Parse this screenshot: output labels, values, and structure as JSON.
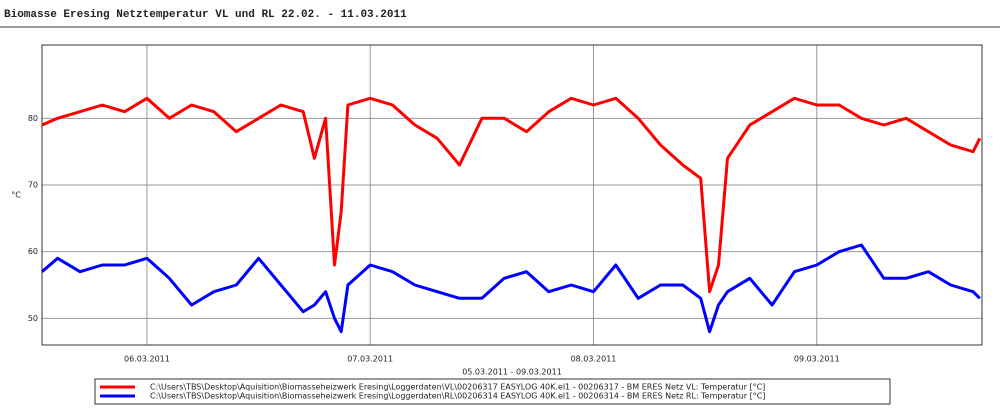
{
  "chart_data": {
    "type": "line",
    "title": "Biomasse Eresing Netztemperatur VL und RL 22.02. - 11.03.2011",
    "x_label": "05.03.2011 - 09.03.2011",
    "y_label": "°C",
    "x": [
      0.53,
      0.6,
      0.7,
      0.8,
      0.9,
      1.0,
      1.1,
      1.2,
      1.3,
      1.4,
      1.5,
      1.6,
      1.7,
      1.75,
      1.8,
      1.84,
      1.87,
      1.9,
      2.0,
      2.1,
      2.2,
      2.3,
      2.4,
      2.5,
      2.6,
      2.7,
      2.8,
      2.9,
      3.0,
      3.1,
      3.2,
      3.3,
      3.4,
      3.48,
      3.52,
      3.56,
      3.6,
      3.7,
      3.8,
      3.9,
      4.0,
      4.1,
      4.2,
      4.3,
      4.4,
      4.5,
      4.6,
      4.7,
      4.73
    ],
    "series": [
      {
        "name": "C:\\Users\\TBS\\Desktop\\Aquisition\\Biomasseheizwerk Eresing\\Loggerdaten\\VL\\00206317 EASYLOG 40K.el1 - 00206317 - BM ERES Netz VL: Temperatur [°C]",
        "color": "#ff0000",
        "values": [
          79,
          80,
          81,
          82,
          81,
          83,
          80,
          82,
          81,
          78,
          80,
          82,
          81,
          74,
          80,
          58,
          66,
          82,
          83,
          82,
          79,
          77,
          73,
          80,
          80,
          78,
          81,
          83,
          82,
          83,
          80,
          76,
          73,
          71,
          54,
          58,
          74,
          79,
          81,
          83,
          82,
          82,
          80,
          79,
          80,
          78,
          76,
          75,
          77
        ]
      },
      {
        "name": "C:\\Users\\TBS\\Desktop\\Aquisition\\Biomasseheizwerk Eresing\\Loggerdaten\\RL\\00206314 EASYLOG 40K.el1 - 00206314 - BM ERES Netz RL: Temperatur [°C]",
        "color": "#0000ff",
        "values": [
          57,
          59,
          57,
          58,
          58,
          59,
          56,
          52,
          54,
          55,
          59,
          55,
          51,
          52,
          54,
          50,
          48,
          55,
          58,
          57,
          55,
          54,
          53,
          53,
          56,
          57,
          54,
          55,
          54,
          58,
          53,
          55,
          55,
          53,
          48,
          52,
          54,
          56,
          52,
          57,
          58,
          60,
          61,
          56,
          56,
          57,
          55,
          54,
          53
        ]
      }
    ],
    "xlim": [
      0.53,
      4.74
    ],
    "xticks": [
      {
        "value": 1,
        "label": "06.03.2011"
      },
      {
        "value": 2,
        "label": "07.03.2011"
      },
      {
        "value": 3,
        "label": "08.03.2011"
      },
      {
        "value": 4,
        "label": "09.03.2011"
      }
    ],
    "ylim": [
      46,
      91
    ],
    "yticks": [
      50,
      60,
      70,
      80
    ],
    "grid": true
  }
}
